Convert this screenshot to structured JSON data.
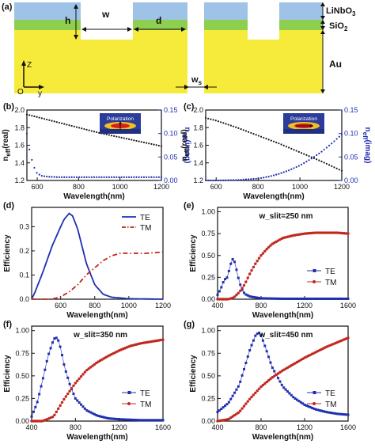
{
  "figure": {
    "colors": {
      "linbo3": "#9ec3e6",
      "sio2": "#8fcf4f",
      "au": "#f6eb3a",
      "te": "#1f2fb0",
      "tm": "#c0281f",
      "dark": "#1a1a1a",
      "inset_bg": "#2b3c9a"
    },
    "panel_a": {
      "tag": "(a)",
      "dim_h": "h",
      "dim_w": "w",
      "dim_d": "d",
      "dim_ws": "w",
      "dim_ws_sub": "s",
      "layer_linbo3": "LiNbO",
      "layer_linbo3_sub": "3",
      "layer_sio2": "SiO",
      "layer_sio2_sub": "2",
      "layer_au": "Au",
      "axis_z": "Z",
      "axis_y": "y",
      "axis_o": "O"
    },
    "inset_text": "Polarization"
  },
  "chart_data": [
    {
      "id": "b",
      "tag": "(b)",
      "type": "scatter",
      "xlabel": "Wavelength(nm)",
      "ylabel_left": "n_eff(real)",
      "ylabel_right": "n_eff(imag)",
      "xlim": [
        550,
        1200
      ],
      "xticks": [
        600,
        800,
        1000,
        1200
      ],
      "ylim_left": [
        1.2,
        2.0
      ],
      "yticks_left": [
        "1.2",
        "1.4",
        "1.6",
        "1.8",
        "2.0"
      ],
      "ylim_right": [
        0,
        0.15
      ],
      "yticks_right": [
        "0.00",
        "0.05",
        "0.10",
        "0.15"
      ],
      "series": [
        {
          "axis": "left",
          "color": "black",
          "x": [
            550,
            600,
            700,
            800,
            900,
            1000,
            1100,
            1200
          ],
          "y": [
            1.95,
            1.92,
            1.86,
            1.8,
            1.74,
            1.69,
            1.64,
            1.59
          ]
        },
        {
          "axis": "right",
          "color": "blue",
          "x": [
            550,
            560,
            570,
            580,
            590,
            600,
            620,
            650,
            700,
            800,
            1000,
            1200
          ],
          "y": [
            0.1,
            0.07,
            0.05,
            0.035,
            0.022,
            0.015,
            0.01,
            0.008,
            0.007,
            0.007,
            0.007,
            0.007
          ]
        }
      ]
    },
    {
      "id": "c",
      "tag": "(c)",
      "type": "scatter",
      "xlabel": "Wavelength(nm)",
      "ylabel_left": "n_eff(real)",
      "ylabel_right": "n_eff(imag)",
      "xlim": [
        550,
        1200
      ],
      "xticks": [
        600,
        800,
        1000,
        1200
      ],
      "ylim_left": [
        1.2,
        2.0
      ],
      "yticks_left": [
        "1.2",
        "1.4",
        "1.6",
        "1.8",
        "2.0"
      ],
      "ylim_right": [
        0,
        0.15
      ],
      "yticks_right": [
        "0.00",
        "0.05",
        "0.10",
        "0.15"
      ],
      "series": [
        {
          "axis": "left",
          "color": "black",
          "x": [
            550,
            600,
            700,
            800,
            900,
            1000,
            1100,
            1200
          ],
          "y": [
            1.91,
            1.88,
            1.8,
            1.71,
            1.62,
            1.52,
            1.42,
            1.31
          ]
        },
        {
          "axis": "right",
          "color": "blue",
          "x": [
            550,
            600,
            700,
            800,
            850,
            900,
            950,
            1000,
            1050,
            1100,
            1150,
            1200
          ],
          "y": [
            0.0,
            0.0,
            0.001,
            0.004,
            0.008,
            0.014,
            0.022,
            0.032,
            0.045,
            0.06,
            0.078,
            0.098
          ]
        }
      ]
    },
    {
      "id": "d",
      "tag": "(d)",
      "type": "line",
      "xlabel": "Wavelength(nm)",
      "ylabel": "Efficiency",
      "xlim": [
        430,
        1200
      ],
      "xticks": [
        600,
        800,
        1000,
        1200
      ],
      "ylim": [
        0,
        0.38
      ],
      "yticks": [
        "0.0",
        "0.1",
        "0.2",
        "0.3"
      ],
      "series": [
        {
          "name": "TE",
          "style": "solid",
          "x": [
            430,
            450,
            500,
            550,
            600,
            620,
            650,
            670,
            700,
            750,
            800,
            850,
            900,
            1000,
            1200
          ],
          "y": [
            0.0,
            0.03,
            0.12,
            0.22,
            0.3,
            0.33,
            0.355,
            0.345,
            0.29,
            0.15,
            0.06,
            0.02,
            0.008,
            0.002,
            0.0
          ]
        },
        {
          "name": "TM",
          "style": "dashdot",
          "x": [
            430,
            500,
            550,
            600,
            650,
            700,
            750,
            800,
            850,
            900,
            950,
            1000,
            1100,
            1200
          ],
          "y": [
            0.0,
            0.0,
            0.0,
            0.01,
            0.03,
            0.06,
            0.1,
            0.13,
            0.16,
            0.18,
            0.19,
            0.19,
            0.19,
            0.195
          ]
        }
      ]
    },
    {
      "id": "e",
      "tag": "(e)",
      "type": "scatter",
      "annotation": "w_slit=250 nm",
      "xlabel": "Wavelength(nm)",
      "ylabel": "Efficiency",
      "xlim": [
        400,
        1600
      ],
      "xticks": [
        400,
        800,
        1200,
        1600
      ],
      "ylim": [
        0,
        1.05
      ],
      "yticks": [
        "0.00",
        "0.25",
        "0.50",
        "0.75",
        "1.00"
      ],
      "series": [
        {
          "name": "TE",
          "x": [
            400,
            430,
            460,
            490,
            520,
            540,
            560,
            580,
            600,
            620,
            650,
            700,
            800,
            1000,
            1200,
            1600
          ],
          "y": [
            0.05,
            0.12,
            0.22,
            0.25,
            0.4,
            0.46,
            0.42,
            0.3,
            0.2,
            0.12,
            0.06,
            0.03,
            0.01,
            0.005,
            0.005,
            0.005
          ]
        },
        {
          "name": "TM",
          "x": [
            400,
            500,
            550,
            600,
            650,
            700,
            750,
            800,
            850,
            900,
            1000,
            1100,
            1200,
            1300,
            1400,
            1500,
            1600
          ],
          "y": [
            0.0,
            0.0,
            0.02,
            0.08,
            0.17,
            0.3,
            0.41,
            0.5,
            0.57,
            0.63,
            0.7,
            0.73,
            0.75,
            0.76,
            0.76,
            0.76,
            0.75
          ]
        }
      ]
    },
    {
      "id": "f",
      "tag": "(f)",
      "type": "scatter",
      "annotation": "w_slit=350 nm",
      "xlabel": "Wavelength(nm)",
      "ylabel": "Efficiency",
      "xlim": [
        400,
        1600
      ],
      "xticks": [
        400,
        800,
        1200,
        1600
      ],
      "ylim": [
        0,
        1.05
      ],
      "yticks": [
        "0.00",
        "0.25",
        "0.50",
        "0.75",
        "1.00"
      ],
      "series": [
        {
          "name": "TE",
          "x": [
            400,
            450,
            500,
            550,
            600,
            620,
            650,
            680,
            700,
            750,
            800,
            900,
            1000,
            1100,
            1200,
            1400,
            1600
          ],
          "y": [
            0.05,
            0.2,
            0.45,
            0.72,
            0.9,
            0.93,
            0.88,
            0.72,
            0.6,
            0.4,
            0.25,
            0.12,
            0.06,
            0.03,
            0.02,
            0.01,
            0.01
          ]
        },
        {
          "name": "TM",
          "x": [
            400,
            500,
            600,
            700,
            800,
            900,
            1000,
            1100,
            1200,
            1300,
            1400,
            1500,
            1600
          ],
          "y": [
            0.0,
            0.0,
            0.05,
            0.25,
            0.42,
            0.56,
            0.65,
            0.72,
            0.78,
            0.83,
            0.86,
            0.88,
            0.9
          ]
        }
      ]
    },
    {
      "id": "g",
      "tag": "(g)",
      "type": "scatter",
      "annotation": "w_slit=450 nm",
      "xlabel": "Wavelength(nm)",
      "ylabel": "Efficiency",
      "xlim": [
        400,
        1600
      ],
      "xticks": [
        400,
        800,
        1200,
        1600
      ],
      "ylim": [
        0,
        1.05
      ],
      "yticks": [
        "0.00",
        "0.25",
        "0.50",
        "0.75",
        "1.00"
      ],
      "series": [
        {
          "name": "TE",
          "x": [
            400,
            500,
            600,
            650,
            700,
            750,
            780,
            800,
            850,
            900,
            1000,
            1100,
            1200,
            1300,
            1400,
            1500,
            1600
          ],
          "y": [
            0.1,
            0.2,
            0.4,
            0.6,
            0.8,
            0.95,
            0.98,
            0.95,
            0.78,
            0.6,
            0.38,
            0.26,
            0.18,
            0.13,
            0.1,
            0.08,
            0.07
          ]
        },
        {
          "name": "TM",
          "x": [
            400,
            500,
            600,
            700,
            800,
            900,
            1000,
            1100,
            1200,
            1300,
            1400,
            1500,
            1600
          ],
          "y": [
            0.0,
            0.02,
            0.1,
            0.25,
            0.38,
            0.48,
            0.56,
            0.63,
            0.7,
            0.76,
            0.82,
            0.87,
            0.92
          ]
        }
      ]
    }
  ]
}
